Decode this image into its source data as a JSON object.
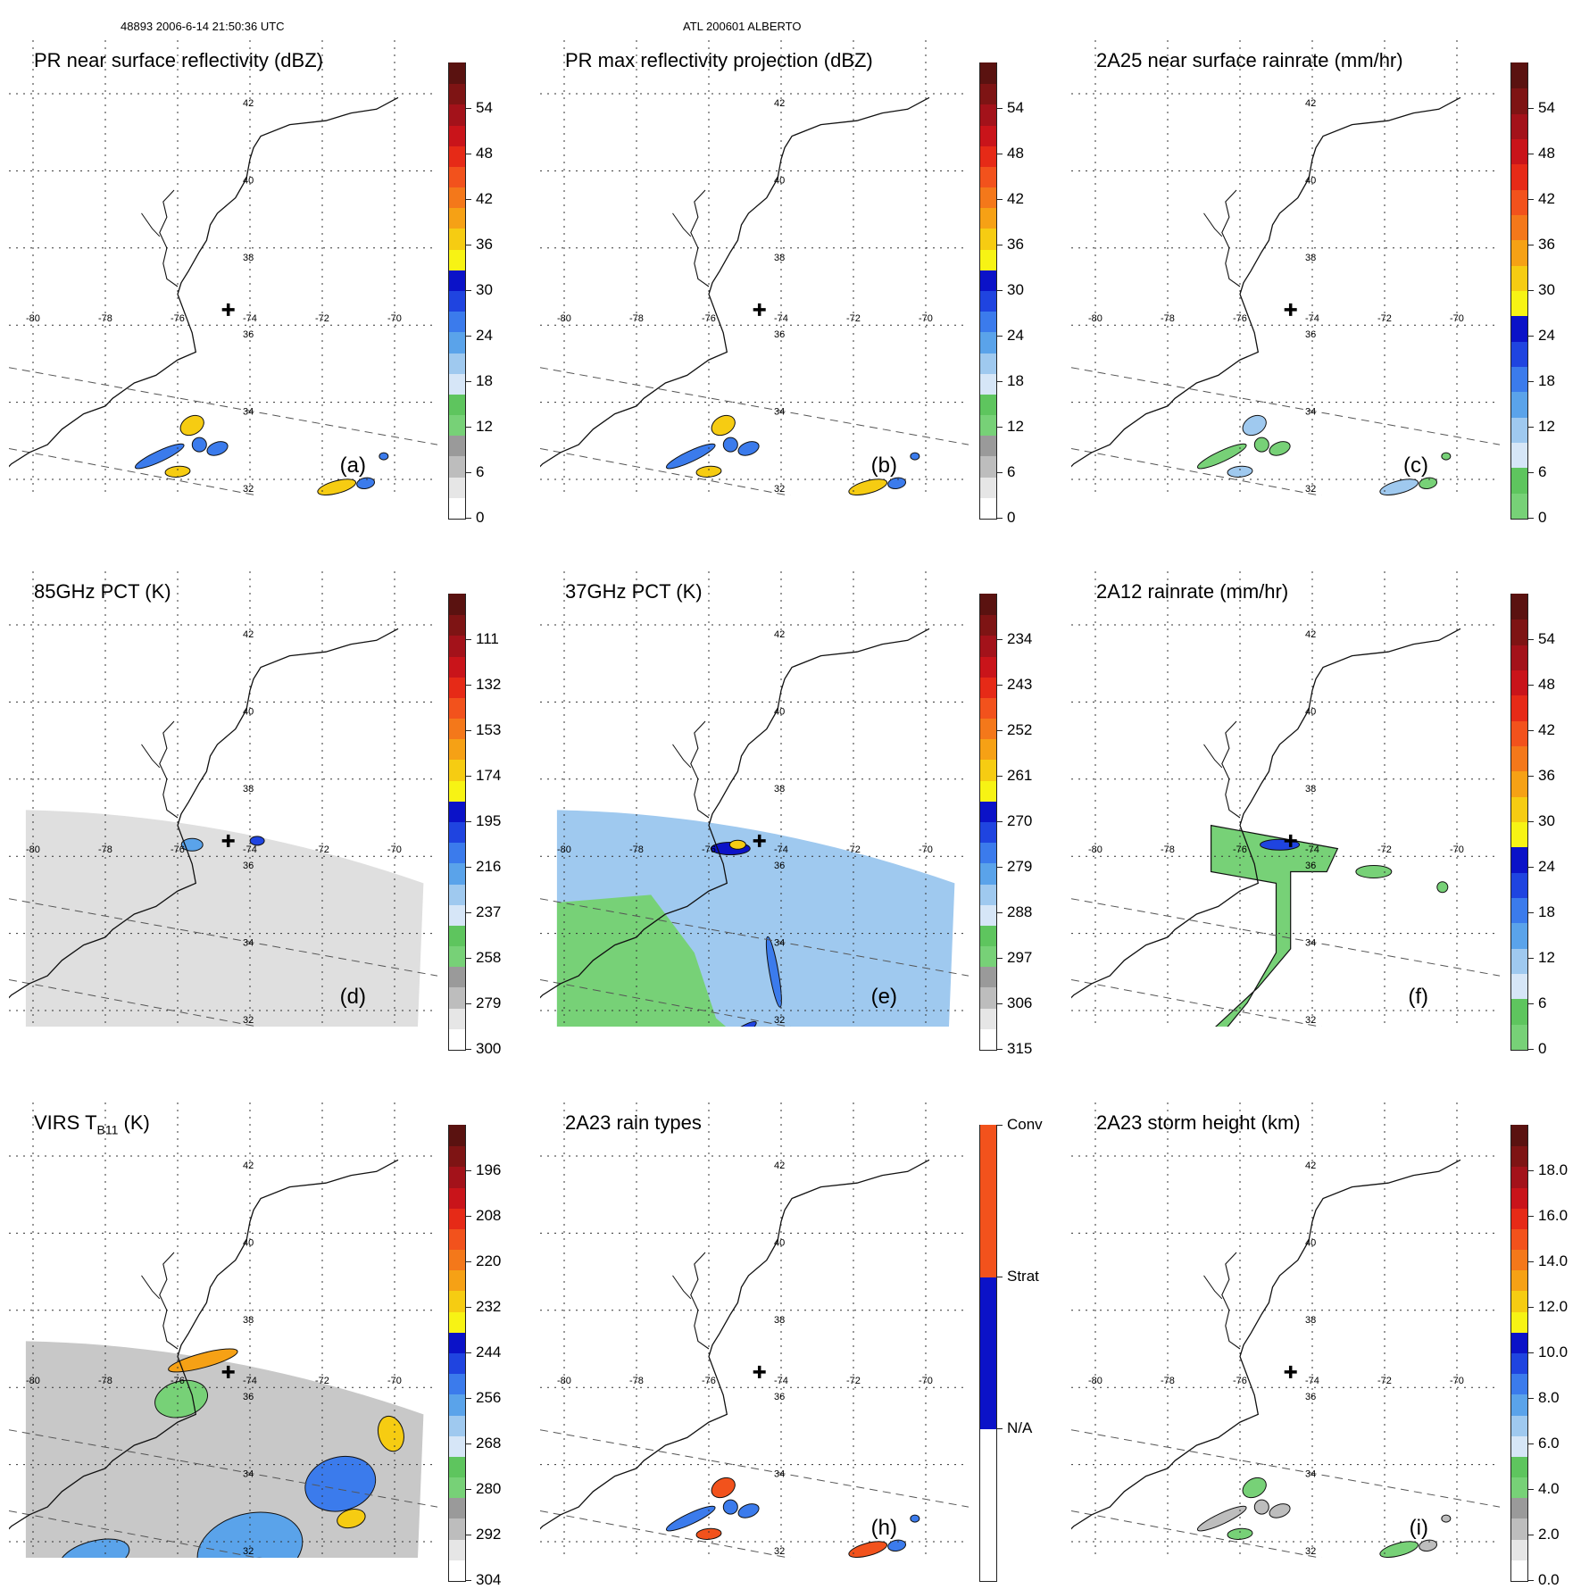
{
  "header": {
    "orbit_time": "48893 2006-6-14 21:50:36 UTC",
    "storm": "ATL 200601 ALBERTO"
  },
  "map_grid": {
    "lon_labels": [
      "-80",
      "-78",
      "-76",
      "-74",
      "-72",
      "-70"
    ],
    "lat_labels": [
      "42",
      "40",
      "38",
      "36",
      "34",
      "32"
    ],
    "storm_center_marker": "plus-icon"
  },
  "panels": [
    {
      "id": "a",
      "title": "PR near surface reflectivity (dBZ)",
      "label": "(a)",
      "field": "swath-pr",
      "colorbar_ticks": [
        "54",
        "48",
        "42",
        "36",
        "30",
        "24",
        "18",
        "12",
        "6",
        "0"
      ],
      "colorbar_colors": [
        "#ffffff",
        "#e6e6e6",
        "#bdbdbd",
        "#9a9a9a",
        "#77d177",
        "#5ec55e",
        "#d6e6f7",
        "#9fc9ef",
        "#5aa3ea",
        "#3b7bec",
        "#1f44e0",
        "#0b12c8",
        "#f7f314",
        "#f6cc12",
        "#f6a115",
        "#f4781a",
        "#f2521c",
        "#e62a17",
        "#c9141a",
        "#a3121a",
        "#7e1414",
        "#5a1210"
      ]
    },
    {
      "id": "b",
      "title": "PR max reflectivity projection (dBZ)",
      "label": "(b)",
      "field": "swath-pr-max",
      "colorbar_ticks": [
        "54",
        "48",
        "42",
        "36",
        "30",
        "24",
        "18",
        "12",
        "6",
        "0"
      ],
      "colorbar_colors": [
        "#ffffff",
        "#e6e6e6",
        "#bdbdbd",
        "#9a9a9a",
        "#77d177",
        "#5ec55e",
        "#d6e6f7",
        "#9fc9ef",
        "#5aa3ea",
        "#3b7bec",
        "#1f44e0",
        "#0b12c8",
        "#f7f314",
        "#f6cc12",
        "#f6a115",
        "#f4781a",
        "#f2521c",
        "#e62a17",
        "#c9141a",
        "#a3121a",
        "#7e1414",
        "#5a1210"
      ]
    },
    {
      "id": "c",
      "title": "2A25 near surface rainrate (mm/hr)",
      "label": "(c)",
      "field": "swath-rain",
      "colorbar_ticks": [
        "54",
        "48",
        "42",
        "36",
        "30",
        "24",
        "18",
        "12",
        "6",
        "0"
      ],
      "colorbar_colors": [
        "#77d177",
        "#5ec55e",
        "#d6e6f7",
        "#9fc9ef",
        "#5aa3ea",
        "#3b7bec",
        "#1f44e0",
        "#0b12c8",
        "#f7f314",
        "#f6cc12",
        "#f6a115",
        "#f4781a",
        "#f2521c",
        "#e62a17",
        "#c9141a",
        "#a3121a",
        "#7e1414",
        "#5a1210"
      ]
    },
    {
      "id": "d",
      "title": "85GHz PCT (K)",
      "label": "(d)",
      "field": "tmi-85",
      "colorbar_ticks": [
        "111",
        "132",
        "153",
        "174",
        "195",
        "216",
        "237",
        "258",
        "279",
        "300"
      ],
      "colorbar_colors": [
        "#ffffff",
        "#e6e6e6",
        "#bdbdbd",
        "#9a9a9a",
        "#77d177",
        "#5ec55e",
        "#d6e6f7",
        "#9fc9ef",
        "#5aa3ea",
        "#3b7bec",
        "#1f44e0",
        "#0b12c8",
        "#f7f314",
        "#f6cc12",
        "#f6a115",
        "#f4781a",
        "#f2521c",
        "#e62a17",
        "#c9141a",
        "#a3121a",
        "#7e1414",
        "#5a1210"
      ]
    },
    {
      "id": "e",
      "title": "37GHz PCT (K)",
      "label": "(e)",
      "field": "tmi-37",
      "colorbar_ticks": [
        "234",
        "243",
        "252",
        "261",
        "270",
        "279",
        "288",
        "297",
        "306",
        "315"
      ],
      "colorbar_colors": [
        "#ffffff",
        "#e6e6e6",
        "#bdbdbd",
        "#9a9a9a",
        "#77d177",
        "#5ec55e",
        "#d6e6f7",
        "#9fc9ef",
        "#5aa3ea",
        "#3b7bec",
        "#1f44e0",
        "#0b12c8",
        "#f7f314",
        "#f6cc12",
        "#f6a115",
        "#f4781a",
        "#f2521c",
        "#e62a17",
        "#c9141a",
        "#a3121a",
        "#7e1414",
        "#5a1210"
      ]
    },
    {
      "id": "f",
      "title": "2A12 rainrate (mm/hr)",
      "label": "(f)",
      "field": "tmi-rain",
      "colorbar_ticks": [
        "54",
        "48",
        "42",
        "36",
        "30",
        "24",
        "18",
        "12",
        "6",
        "0"
      ],
      "colorbar_colors": [
        "#77d177",
        "#5ec55e",
        "#d6e6f7",
        "#9fc9ef",
        "#5aa3ea",
        "#3b7bec",
        "#1f44e0",
        "#0b12c8",
        "#f7f314",
        "#f6cc12",
        "#f6a115",
        "#f4781a",
        "#f2521c",
        "#e62a17",
        "#c9141a",
        "#a3121a",
        "#7e1414",
        "#5a1210"
      ]
    },
    {
      "id": "g",
      "title": "VIRS T",
      "title_sub": "B11",
      "title_suffix": " (K)",
      "label": "",
      "field": "virs",
      "colorbar_ticks": [
        "196",
        "208",
        "220",
        "232",
        "244",
        "256",
        "268",
        "280",
        "292",
        "304"
      ],
      "colorbar_colors": [
        "#ffffff",
        "#e6e6e6",
        "#bdbdbd",
        "#9a9a9a",
        "#77d177",
        "#5ec55e",
        "#d6e6f7",
        "#9fc9ef",
        "#5aa3ea",
        "#3b7bec",
        "#1f44e0",
        "#0b12c8",
        "#f7f314",
        "#f6cc12",
        "#f6a115",
        "#f4781a",
        "#f2521c",
        "#e62a17",
        "#c9141a",
        "#a3121a",
        "#7e1414",
        "#5a1210"
      ]
    },
    {
      "id": "h",
      "title": "2A23 rain types",
      "label": "(h)",
      "field": "raintype",
      "colorbar_ticks": [
        "Conv",
        "Strat",
        "N/A"
      ],
      "colorbar_colors": [
        "#ffffff",
        "#0b12c8",
        "#f2521c"
      ]
    },
    {
      "id": "i",
      "title": "2A23 storm height (km)",
      "label": "(i)",
      "field": "height",
      "colorbar_ticks": [
        "18.0",
        "16.0",
        "14.0",
        "12.0",
        "10.0",
        "8.0",
        "6.0",
        "4.0",
        "2.0",
        "0.0"
      ],
      "colorbar_colors": [
        "#ffffff",
        "#e6e6e6",
        "#bdbdbd",
        "#9a9a9a",
        "#77d177",
        "#5ec55e",
        "#d6e6f7",
        "#9fc9ef",
        "#5aa3ea",
        "#3b7bec",
        "#1f44e0",
        "#0b12c8",
        "#f7f314",
        "#f6cc12",
        "#f6a115",
        "#f4781a",
        "#f2521c",
        "#e62a17",
        "#c9141a",
        "#a3121a",
        "#7e1414",
        "#5a1210"
      ]
    }
  ]
}
